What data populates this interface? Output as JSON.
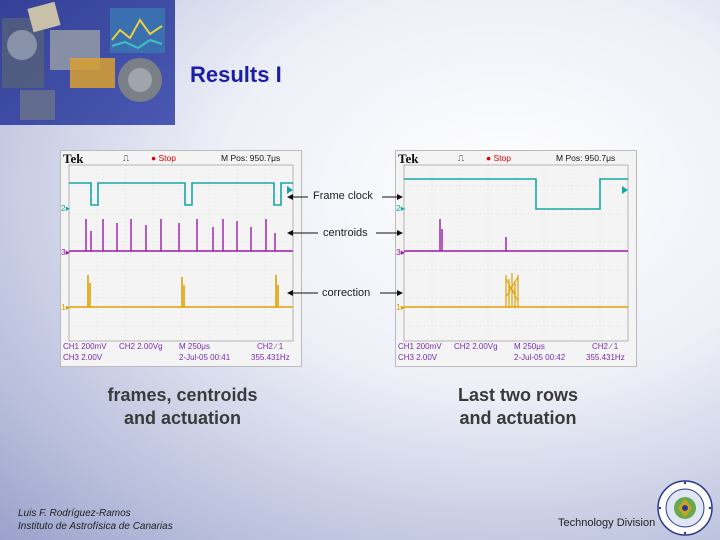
{
  "slide": {
    "title": "Results I",
    "captions": {
      "left": [
        "frames, centroids",
        "and actuation"
      ],
      "right": [
        "Last two rows",
        "and actuation"
      ]
    },
    "annotations": {
      "frame_clock": "Frame clock",
      "centroids": "centroids",
      "correction": "correction"
    },
    "footer": {
      "author_line1": "Luis F. Rodríguez-Ramos",
      "author_line2": "Instituto de Astrofísica de Canarias",
      "division": "Technology Division"
    }
  },
  "scopes": [
    {
      "brand": "Tek",
      "trig_symbol": "⎍",
      "run_state": "Stop",
      "position": "M Pos: 950.7μs",
      "ch_markers": {
        "ch2": "2▸",
        "ch3": "3▸",
        "ch1": "1▸"
      },
      "bottom_row1": [
        "CH1  200mV",
        "CH2  2.00Vg",
        "M 250μs",
        "CH2 ∕ 1"
      ],
      "bottom_row2": [
        "CH3  2.00V",
        "2-Jul-05 00:41",
        "355.431Hz"
      ]
    },
    {
      "brand": "Tek",
      "trig_symbol": "⎍",
      "run_state": "Stop",
      "position": "M Pos: 950.7μs",
      "ch_markers": {
        "ch2": "2▸",
        "ch3": "3▸",
        "ch1": "1▸"
      },
      "bottom_row1": [
        "CH1  200mV",
        "CH2  2.00Vg",
        "M 250μs",
        "CH2 ∕ 1"
      ],
      "bottom_row2": [
        "CH3  2.00V",
        "2-Jul-05 00:42",
        "355.431Hz"
      ]
    }
  ],
  "colors": {
    "title": "#1b1fa6",
    "frame_clock_trace": "#17a6a6",
    "centroid_trace": "#9a1aa8",
    "correction_trace": "#e0a000"
  }
}
